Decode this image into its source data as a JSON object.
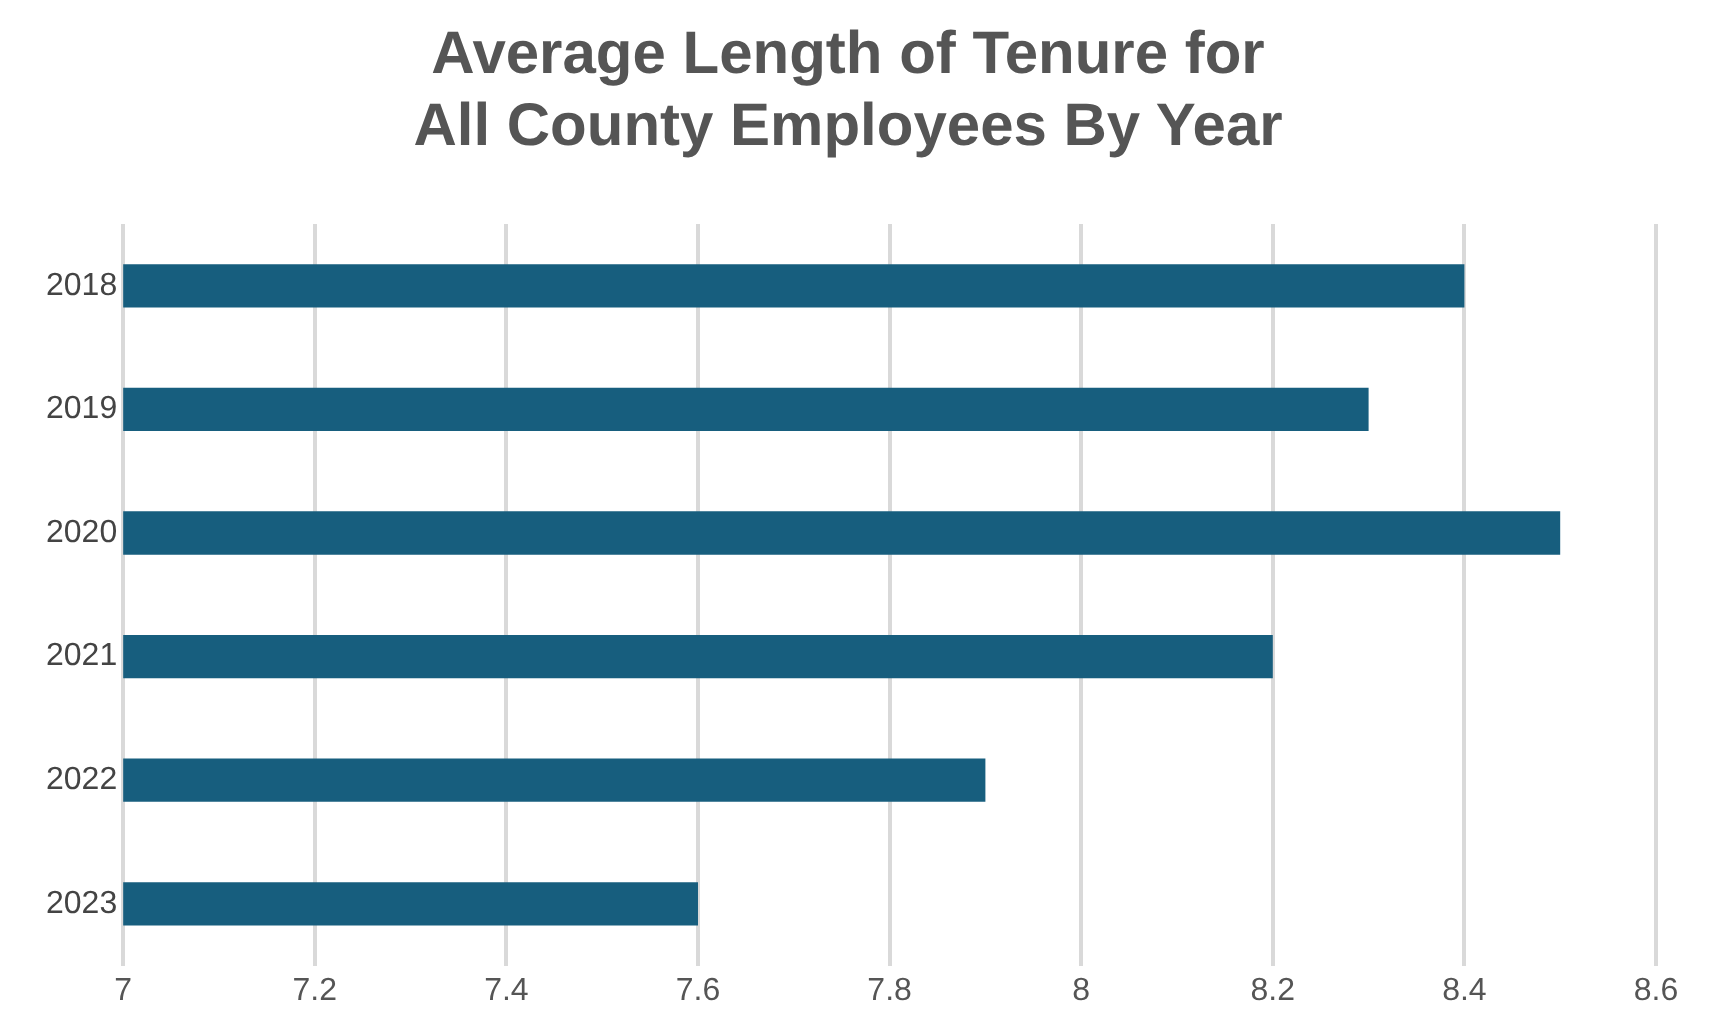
{
  "chart_data": {
    "type": "bar",
    "orientation": "horizontal",
    "title": "Average Length of Tenure for\nAll County Employees By Year",
    "categories": [
      "2018",
      "2019",
      "2020",
      "2021",
      "2022",
      "2023"
    ],
    "values": [
      8.4,
      8.3,
      8.5,
      8.2,
      7.9,
      7.6
    ],
    "color": "#175e7e",
    "xlim": [
      7,
      8.6
    ],
    "xticks": [
      7,
      7.2,
      7.4,
      7.6,
      7.8,
      8,
      8.2,
      8.4,
      8.6
    ],
    "grid": "x"
  }
}
